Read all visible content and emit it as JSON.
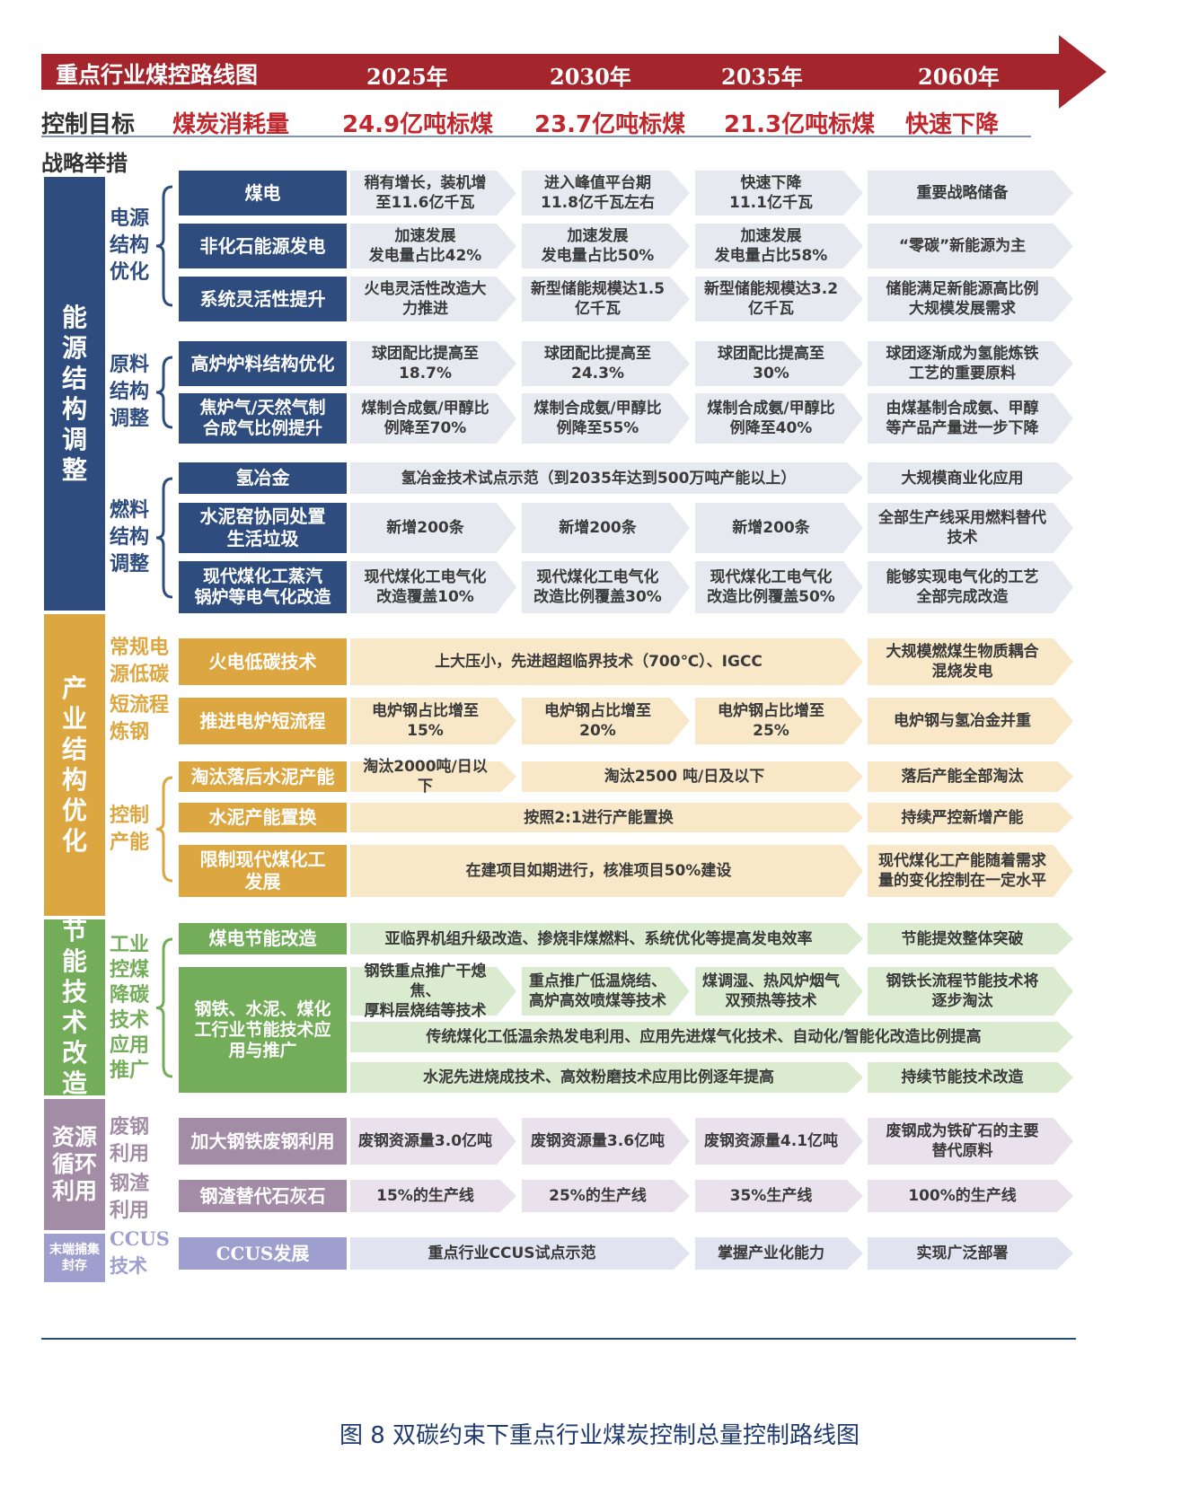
{
  "header": {
    "title": "重点行业煤控路线图",
    "years": [
      "2025年",
      "2030年",
      "2035年",
      "2060年"
    ],
    "control_label": "控制目标",
    "control_metric": "煤炭消耗量",
    "targets": [
      "24.9亿吨标煤",
      "23.7亿吨标煤",
      "21.3亿吨标煤",
      "快速下降"
    ],
    "measures_label": "战略举措"
  },
  "colors": {
    "header_red": "#a4262c",
    "energy_blue": "#2e4c7e",
    "industry_gold": "#dca640",
    "saving_green": "#74ad5a",
    "recycle_purple": "#a38ca6",
    "ccus_lilac": "#9f9fcf",
    "cell_grey": "#e6e9ef",
    "cell_cream": "#f8e8c8",
    "cell_green": "#dbebd0",
    "cell_purple": "#e9e2ec",
    "cell_lilac": "#e2e3f1"
  },
  "categories": [
    {
      "key": "energy",
      "label": "能源结构调整",
      "color": "energy_blue",
      "top": 197,
      "bottom": 680
    },
    {
      "key": "industry",
      "label": "产业结构优化",
      "color": "industry_gold",
      "top": 680,
      "bottom": 1020
    },
    {
      "key": "saving",
      "label": "节能技术改造",
      "color": "saving_green",
      "top": 1020,
      "bottom": 1220
    },
    {
      "key": "recycle",
      "label": "资源循环利用",
      "color": "recycle_purple",
      "top": 1220,
      "bottom": 1370
    },
    {
      "key": "ccus",
      "label": "末端捕集封存",
      "color": "ccus_lilac",
      "top": 1370,
      "bottom": 1428
    }
  ],
  "subcategories": [
    {
      "label": "电源结构优化",
      "lines": [
        "电源",
        "结构",
        "优化"
      ],
      "color": "#2e4c7e",
      "brace": true
    },
    {
      "label": "原料结构调整",
      "lines": [
        "原料",
        "结构",
        "调整"
      ],
      "color": "#2e4c7e",
      "brace": true
    },
    {
      "label": "燃料结构调整",
      "lines": [
        "燃料",
        "结构",
        "调整"
      ],
      "color": "#2e4c7e",
      "brace": true
    },
    {
      "label": "常规电源低碳",
      "lines": [
        "常规电",
        "源低碳"
      ],
      "color": "#dca640",
      "brace": false
    },
    {
      "label": "短流程炼钢",
      "lines": [
        "短流程",
        "炼钢"
      ],
      "color": "#dca640",
      "brace": false
    },
    {
      "label": "控制产能",
      "lines": [
        "控制",
        "产能"
      ],
      "color": "#dca640",
      "brace": true
    },
    {
      "label": "工业控煤降碳技术应用推广",
      "lines": [
        "工业",
        "控煤",
        "降碳",
        "技术",
        "应用",
        "推广"
      ],
      "color": "#74ad5a",
      "brace": true
    },
    {
      "label": "废钢利用",
      "lines": [
        "废钢",
        "利用"
      ],
      "color": "#a38ca6",
      "brace": false
    },
    {
      "label": "钢渣利用",
      "lines": [
        "钢渣",
        "利用"
      ],
      "color": "#a38ca6",
      "brace": false
    },
    {
      "label": "CCUS技术",
      "lines": [
        "CCUS",
        "技术"
      ],
      "color": "#9f9fcf",
      "brace": false
    }
  ],
  "rows": [
    {
      "label": "煤电",
      "cells": [
        {
          "text": "稍有增长，装机增\n至11.6亿千瓦",
          "span": 1
        },
        {
          "text": "进入峰值平台期\n11.8亿千瓦左右",
          "span": 1
        },
        {
          "text": "快速下降\n11.1亿千瓦",
          "span": 1
        },
        {
          "text": "重要战略储备",
          "span": 1
        }
      ]
    },
    {
      "label": "非化石能源发电",
      "cells": [
        {
          "text": "加速发展\n发电量占比42%",
          "span": 1
        },
        {
          "text": "加速发展\n发电量占比50%",
          "span": 1
        },
        {
          "text": "加速发展\n发电量占比58%",
          "span": 1
        },
        {
          "text": "“零碳”新能源为主",
          "span": 1
        }
      ]
    },
    {
      "label": "系统灵活性提升",
      "cells": [
        {
          "text": "火电灵活性改造大\n力推进",
          "span": 1
        },
        {
          "text": "新型储能规模达1.5\n亿千瓦",
          "span": 1
        },
        {
          "text": "新型储能规模达3.2\n亿千瓦",
          "span": 1
        },
        {
          "text": "储能满足新能源高比例\n大规模发展需求",
          "span": 1
        }
      ]
    },
    {
      "label": "高炉炉料结构优化",
      "cells": [
        {
          "text": "球团配比提高至\n18.7%",
          "span": 1
        },
        {
          "text": "球团配比提高至\n24.3%",
          "span": 1
        },
        {
          "text": "球团配比提高至\n30%",
          "span": 1
        },
        {
          "text": "球团逐渐成为氢能炼铁\n工艺的重要原料",
          "span": 1
        }
      ]
    },
    {
      "label": "焦炉气/天然气制\n合成气比例提升",
      "cells": [
        {
          "text": "煤制合成氨/甲醇比\n例降至70%",
          "span": 1
        },
        {
          "text": "煤制合成氨/甲醇比\n例降至55%",
          "span": 1
        },
        {
          "text": "煤制合成氨/甲醇比\n例降至40%",
          "span": 1
        },
        {
          "text": "由煤基制合成氨、甲醇\n等产品产量进一步下降",
          "span": 1
        }
      ]
    },
    {
      "label": "氢冶金",
      "cells": [
        {
          "text": "氢冶金技术试点示范（到2035年达到500万吨产能以上）",
          "span": 3
        },
        {
          "text": "大规模商业化应用",
          "span": 1
        }
      ]
    },
    {
      "label": "水泥窑协同处置\n生活垃圾",
      "cells": [
        {
          "text": "新增200条",
          "span": 1
        },
        {
          "text": "新增200条",
          "span": 1
        },
        {
          "text": "新增200条",
          "span": 1
        },
        {
          "text": "全部生产线采用燃料替代\n技术",
          "span": 1
        }
      ]
    },
    {
      "label": "现代煤化工蒸汽\n锅炉等电气化改造",
      "cells": [
        {
          "text": "现代煤化工电气化\n改造覆盖10%",
          "span": 1
        },
        {
          "text": "现代煤化工电气化\n改造比例覆盖30%",
          "span": 1
        },
        {
          "text": "现代煤化工电气化\n改造比例覆盖50%",
          "span": 1
        },
        {
          "text": "能够实现电气化的工艺\n全部完成改造",
          "span": 1
        }
      ]
    },
    {
      "label": "火电低碳技术",
      "cells": [
        {
          "text": "上大压小，先进超超临界技术（700℃）、IGCC",
          "span": 3
        },
        {
          "text": "大规模燃煤生物质耦合\n混烧发电",
          "span": 1
        }
      ]
    },
    {
      "label": "推进电炉短流程",
      "cells": [
        {
          "text": "电炉钢占比增至\n15%",
          "span": 1
        },
        {
          "text": "电炉钢占比增至\n20%",
          "span": 1
        },
        {
          "text": "电炉钢占比增至\n25%",
          "span": 1
        },
        {
          "text": "电炉钢与氢冶金并重",
          "span": 1
        }
      ]
    },
    {
      "label": "淘汰落后水泥产能",
      "cells": [
        {
          "text": "淘汰2000吨/日以下",
          "span": 1
        },
        {
          "text": "淘汰2500 吨/日及以下",
          "span": 2
        },
        {
          "text": "落后产能全部淘汰",
          "span": 1
        }
      ]
    },
    {
      "label": "水泥产能置换",
      "cells": [
        {
          "text": "按照2:1进行产能置换",
          "span": 3
        },
        {
          "text": "持续严控新增产能",
          "span": 1
        }
      ]
    },
    {
      "label": "限制现代煤化工\n发展",
      "cells": [
        {
          "text": "在建项目如期进行，核准项目50%建设",
          "span": 3
        },
        {
          "text": "现代煤化工产能随着需求\n量的变化控制在一定水平",
          "span": 1
        }
      ]
    },
    {
      "label": "煤电节能改造",
      "cells": [
        {
          "text": "亚临界机组升级改造、掺烧非煤燃料、系统优化等提高发电效率",
          "span": 3
        },
        {
          "text": "节能提效整体突破",
          "span": 1
        }
      ]
    },
    {
      "label": "钢铁、水泥、煤化\n工行业节能技术应\n用与推广",
      "cells": [
        {
          "text": "钢铁重点推广干熄焦、\n厚料层烧结等技术",
          "span": 1
        },
        {
          "text": "重点推广低温烧结、\n高炉高效喷煤等技术",
          "span": 1
        },
        {
          "text": "煤调湿、热风炉烟气\n双预热等技术",
          "span": 1
        },
        {
          "text": "钢铁长流程节能技术将\n逐步淘汰",
          "span": 1
        }
      ]
    },
    {
      "label": "",
      "cells": [
        {
          "text": "传统煤化工低温余热发电利用、应用先进煤气化技术、自动化/智能化改造比例提高",
          "span": 4
        }
      ]
    },
    {
      "label": "",
      "cells": [
        {
          "text": "水泥先进烧成技术、高效粉磨技术应用比例逐年提高",
          "span": 3
        },
        {
          "text": "持续节能技术改造",
          "span": 1
        }
      ]
    },
    {
      "label": "加大钢铁废钢利用",
      "cells": [
        {
          "text": "废钢资源量3.0亿吨",
          "span": 1
        },
        {
          "text": "废钢资源量3.6亿吨",
          "span": 1
        },
        {
          "text": "废钢资源量4.1亿吨",
          "span": 1
        },
        {
          "text": "废钢成为铁矿石的主要\n替代原料",
          "span": 1
        }
      ]
    },
    {
      "label": "钢渣替代石灰石",
      "cells": [
        {
          "text": "15%的生产线",
          "span": 1
        },
        {
          "text": "25%的生产线",
          "span": 1
        },
        {
          "text": "35%生产线",
          "span": 1
        },
        {
          "text": "100%的生产线",
          "span": 1
        }
      ]
    },
    {
      "label": "CCUS发展",
      "cells": [
        {
          "text": "重点行业CCUS试点示范",
          "span": 2
        },
        {
          "text": "掌握产业化能力",
          "span": 1
        },
        {
          "text": "实现广泛部署",
          "span": 1
        }
      ]
    }
  ],
  "caption": "图 8  双碳约束下重点行业煤炭控制总量控制路线图"
}
